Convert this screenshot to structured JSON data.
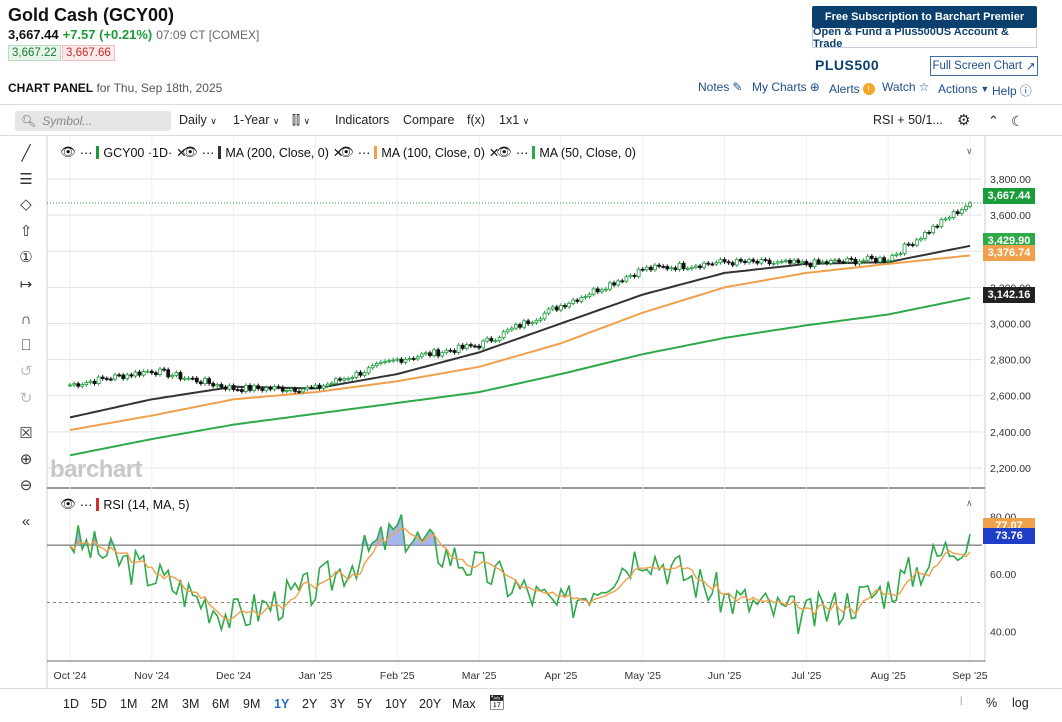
{
  "header": {
    "title": "Gold Cash (GCY00)",
    "last": "3,667.44",
    "change": "+7.57 (+0.21%)",
    "time": "07:09 CT [COMEX]",
    "bid": "3,667.22",
    "ask": "3,667.66"
  },
  "promo": {
    "line1": "Free Subscription to Barchart Premier",
    "line2": "Open & Fund a Plus500US Account & Trade",
    "brand": "PLUS500",
    "fullscreen": "Full Screen Chart"
  },
  "panel": {
    "title": "CHART PANEL",
    "date": "for Thu, Sep 18th, 2025",
    "notes": "Notes",
    "mycharts": "My Charts",
    "alerts": "Alerts",
    "watch": "Watch",
    "actions": "Actions",
    "help": "Help"
  },
  "toolbar": {
    "symbol_placeholder": "Symbol...",
    "interval": "Daily",
    "period": "1-Year",
    "indicators": "Indicators",
    "compare": "Compare",
    "fx": "f(x)",
    "layout": "1x1",
    "study": "RSI + 50/1..."
  },
  "legend": {
    "symbol": "GCY00 ·1D·",
    "ma200": "MA (200, Close, 0)",
    "ma100": "MA (100, Close, 0)",
    "ma50": "MA (50, Close, 0)",
    "rsi": "RSI (14, MA, 5)"
  },
  "colors": {
    "up": "#1a9c3a",
    "down": "#111111",
    "ma200": "#333333",
    "ma100": "#f0a04b",
    "ma50": "#2eaa4a",
    "rsi_line": "#2eaa4a",
    "rsi_ma": "#f0a04b",
    "rsi_fill": "#3a5bd9"
  },
  "price_tags": {
    "last": "3,667.44",
    "ma50": "3,429.90",
    "ma100": "3,376.74",
    "ma200": "3,142.16",
    "rsi1": "77.07",
    "rsi2": "73.76"
  },
  "price_axis": [
    "3,800.00",
    "3,600.00",
    "3,400.00",
    "3,200.00",
    "3,000.00",
    "2,800.00",
    "2,600.00",
    "2,400.00",
    "2,200.00"
  ],
  "rsi_axis": [
    "80.00",
    "60.00",
    "40.00"
  ],
  "x_axis": [
    "Oct '24",
    "Nov '24",
    "Dec '24",
    "Jan '25",
    "Feb '25",
    "Mar '25",
    "Apr '25",
    "May '25",
    "Jun '25",
    "Jul '25",
    "Aug '25",
    "Sep '25"
  ],
  "watermark": "barchart",
  "ranges": [
    "1D",
    "5D",
    "1M",
    "2M",
    "3M",
    "6M",
    "9M",
    "1Y",
    "2Y",
    "3Y",
    "5Y",
    "10Y",
    "20Y",
    "Max"
  ],
  "active_range": "1Y",
  "bottom_right": [
    "%",
    "log"
  ],
  "chart_data": {
    "type": "line",
    "x": [
      "Oct '24",
      "Nov '24",
      "Dec '24",
      "Jan '25",
      "Feb '25",
      "Mar '25",
      "Apr '25",
      "May '25",
      "Jun '25",
      "Jul '25",
      "Aug '25",
      "Sep '25"
    ],
    "series": [
      {
        "name": "GCY00",
        "values": [
          2660,
          2740,
          2640,
          2640,
          2800,
          2880,
          3100,
          3300,
          3340,
          3330,
          3360,
          3667.44
        ]
      },
      {
        "name": "MA (200, Close, 0)",
        "values": [
          2270,
          2360,
          2440,
          2500,
          2560,
          2620,
          2720,
          2830,
          2920,
          2990,
          3050,
          3142.16
        ]
      },
      {
        "name": "MA (100, Close, 0)",
        "values": [
          2410,
          2490,
          2580,
          2620,
          2680,
          2760,
          2890,
          3060,
          3200,
          3280,
          3330,
          3376.74
        ]
      },
      {
        "name": "MA (50, Close, 0)",
        "values": [
          2480,
          2580,
          2650,
          2640,
          2720,
          2840,
          3000,
          3160,
          3280,
          3330,
          3340,
          3429.9
        ]
      }
    ],
    "ylim": [
      2100,
      3850
    ],
    "rsi": {
      "name": "RSI (14, MA, 5)",
      "ylim": [
        30,
        85
      ],
      "values": [
        72,
        60,
        45,
        55,
        75,
        62,
        48,
        68,
        52,
        45,
        55,
        73.76
      ]
    }
  }
}
